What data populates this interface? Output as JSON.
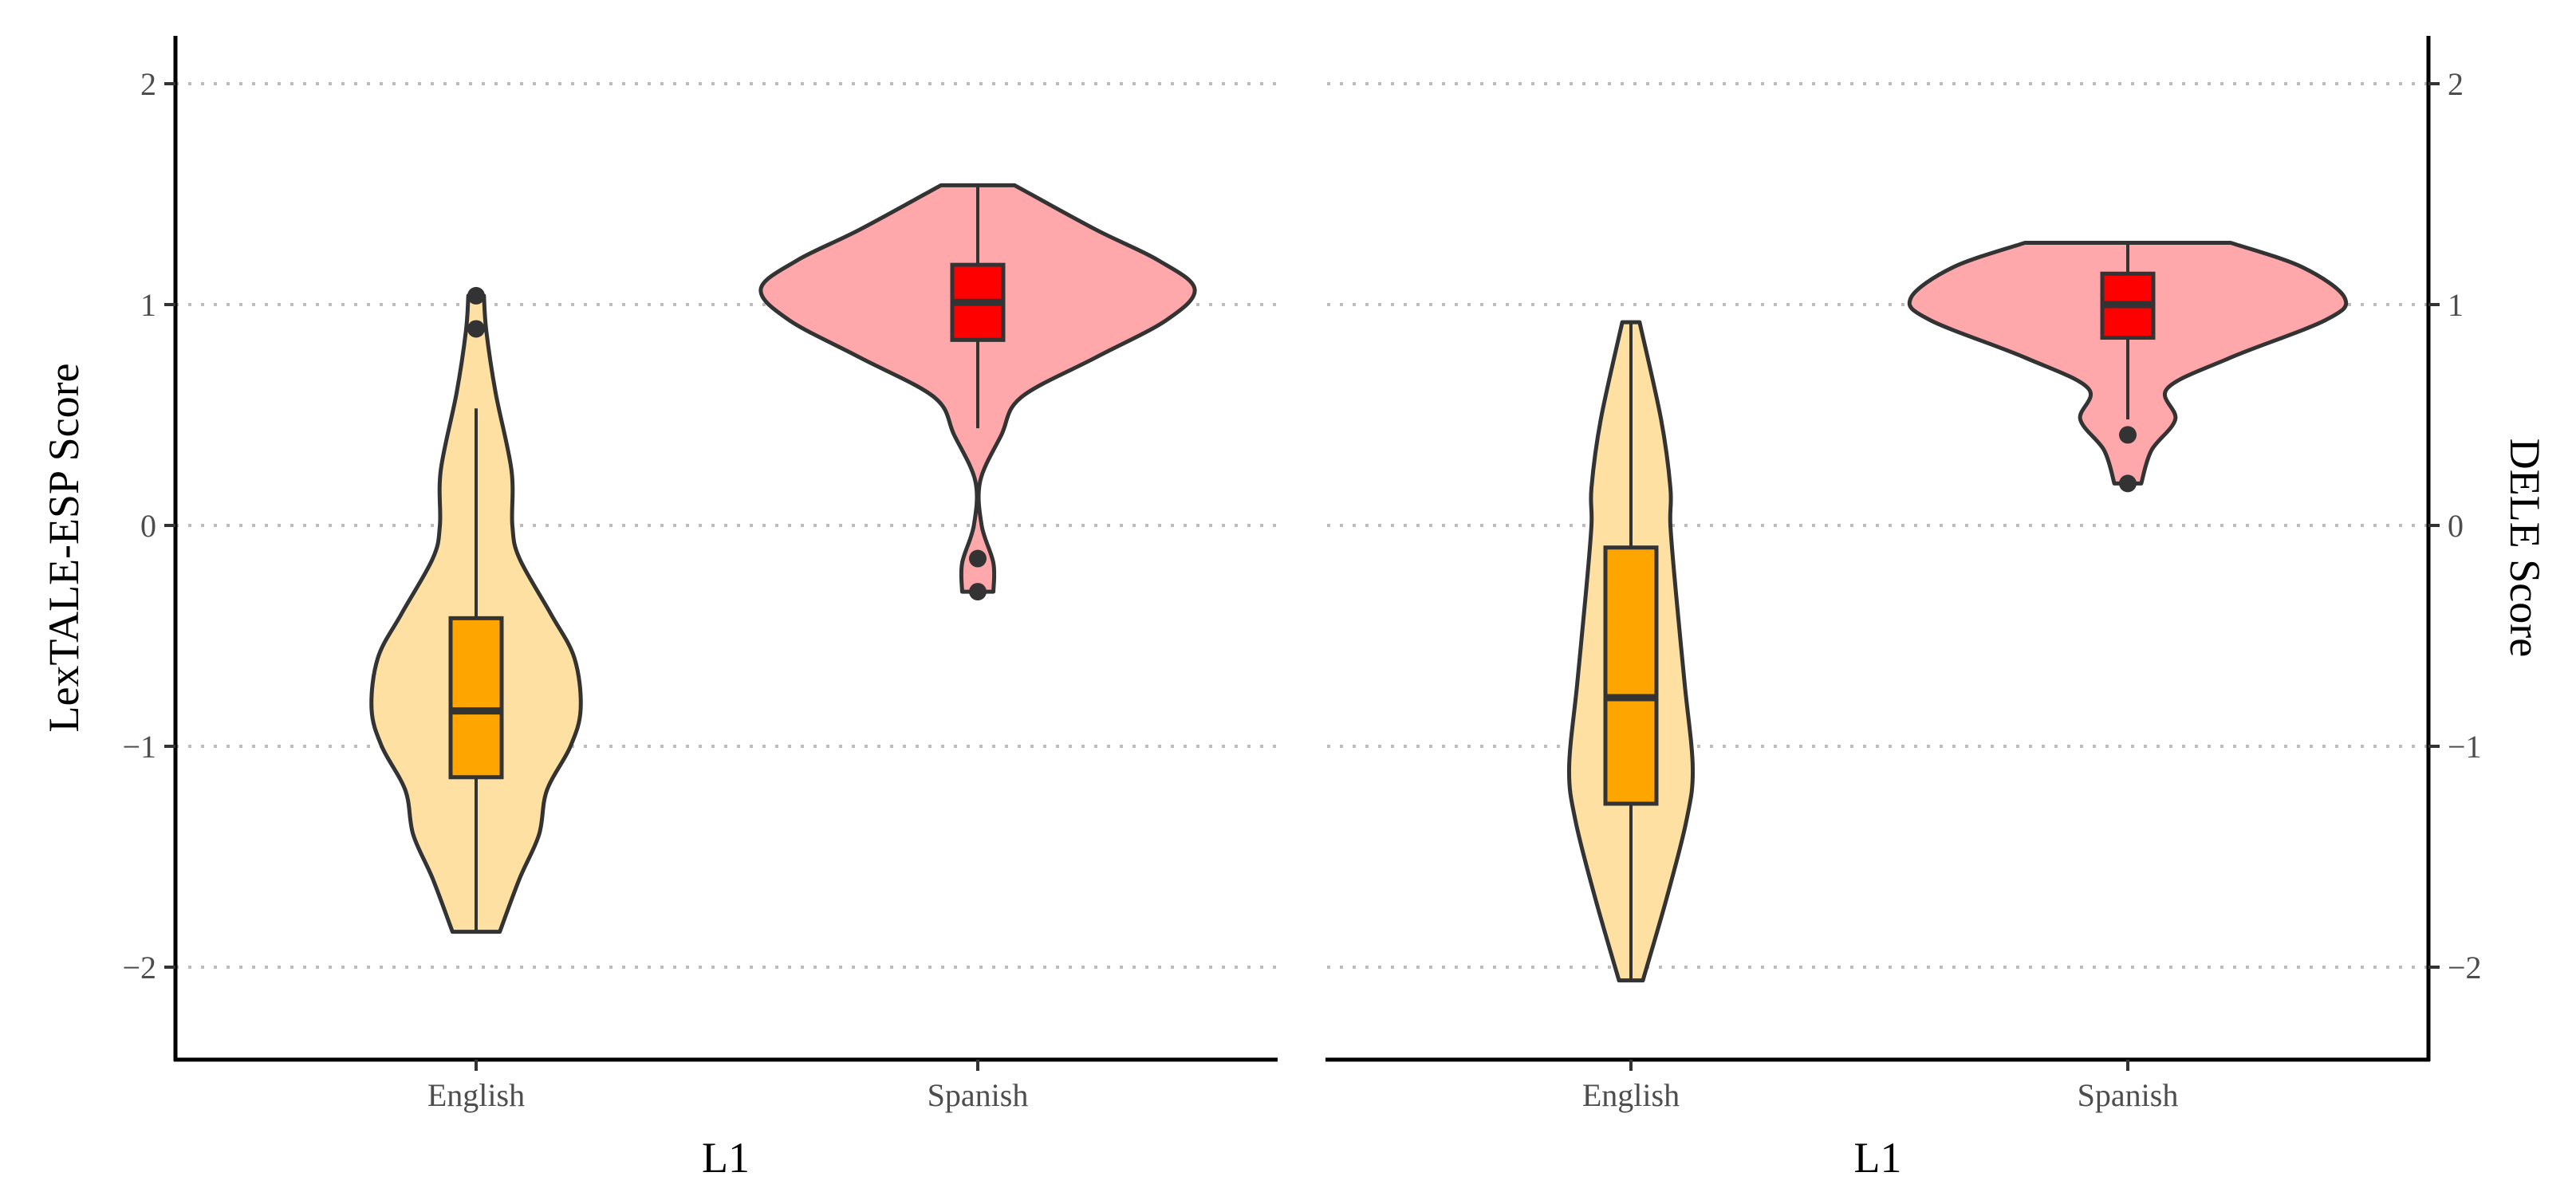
{
  "chart_data": [
    {
      "type": "violin",
      "xlabel": "L1",
      "ylabel": "LexTALE-ESP Score",
      "ylabel_side": "left",
      "categories": [
        "English",
        "Spanish"
      ],
      "yticks": [
        -2,
        -1,
        0,
        1,
        2
      ],
      "ytick_labels": [
        "−2",
        "−1",
        "0",
        "1",
        "2"
      ],
      "ylim": [
        -2.4,
        2.2
      ],
      "grid": "horizontal dotted",
      "groups": [
        {
          "name": "English",
          "violin_color": "#FFE0A3",
          "box_color": "#FFA500",
          "box": {
            "whisker_low": -1.84,
            "q1": -1.14,
            "median": -0.84,
            "q3": -0.42,
            "whisker_high": 0.53
          },
          "outliers": [
            0.89,
            1.04
          ],
          "density": [
            [
              1.04,
              0.036
            ],
            [
              0.88,
              0.047
            ],
            [
              0.6,
              0.09
            ],
            [
              0.25,
              0.163
            ],
            [
              0.0,
              0.167
            ],
            [
              -0.15,
              0.2
            ],
            [
              -0.4,
              0.344
            ],
            [
              -0.6,
              0.453
            ],
            [
              -0.83,
              0.482
            ],
            [
              -1.0,
              0.435
            ],
            [
              -1.2,
              0.326
            ],
            [
              -1.4,
              0.29
            ],
            [
              -1.6,
              0.2
            ],
            [
              -1.84,
              0.109
            ]
          ]
        },
        {
          "name": "Spanish",
          "violin_color": "#FFA8AB",
          "box_color": "#FF0000",
          "box": {
            "whisker_low": 0.44,
            "q1": 0.84,
            "median": 1.01,
            "q3": 1.18,
            "whisker_high": 1.54
          },
          "outliers": [
            -0.15,
            -0.3
          ],
          "density": [
            [
              1.54,
              0.17
            ],
            [
              1.34,
              0.543
            ],
            [
              1.2,
              0.833
            ],
            [
              1.07,
              1.0
            ],
            [
              0.93,
              0.87
            ],
            [
              0.76,
              0.543
            ],
            [
              0.58,
              0.2
            ],
            [
              0.41,
              0.109
            ],
            [
              0.2,
              0.011
            ],
            [
              0.0,
              0.018
            ],
            [
              -0.17,
              0.072
            ],
            [
              -0.3,
              0.072
            ]
          ]
        }
      ]
    },
    {
      "type": "violin",
      "xlabel": "L1",
      "ylabel": "DELE Score",
      "ylabel_side": "right",
      "categories": [
        "English",
        "Spanish"
      ],
      "yticks": [
        -2,
        -1,
        0,
        1,
        2
      ],
      "ytick_labels": [
        "−2",
        "−1",
        "0",
        "1",
        "2"
      ],
      "ylim": [
        -2.4,
        2.2
      ],
      "grid": "horizontal dotted",
      "groups": [
        {
          "name": "English",
          "violin_color": "#FFE0A3",
          "box_color": "#FFA500",
          "box": {
            "whisker_low": -2.06,
            "q1": -1.26,
            "median": -0.78,
            "q3": -0.1,
            "whisker_high": 0.92
          },
          "outliers": [],
          "density": [
            [
              0.92,
              0.04
            ],
            [
              0.48,
              0.139
            ],
            [
              0.17,
              0.182
            ],
            [
              0.0,
              0.182
            ],
            [
              -0.31,
              0.208
            ],
            [
              -0.72,
              0.248
            ],
            [
              -1.1,
              0.285
            ],
            [
              -1.34,
              0.255
            ],
            [
              -1.69,
              0.164
            ],
            [
              -2.06,
              0.055
            ]
          ]
        },
        {
          "name": "Spanish",
          "violin_color": "#FFA8AB",
          "box_color": "#FF0000",
          "box": {
            "whisker_low": 0.48,
            "q1": 0.85,
            "median": 1.0,
            "q3": 1.14,
            "whisker_high": 1.28
          },
          "outliers": [
            0.41,
            0.19
          ],
          "density": [
            [
              1.28,
              0.474
            ],
            [
              1.17,
              0.803
            ],
            [
              1.03,
              1.0
            ],
            [
              0.93,
              0.912
            ],
            [
              0.76,
              0.474
            ],
            [
              0.62,
              0.182
            ],
            [
              0.48,
              0.219
            ],
            [
              0.34,
              0.109
            ],
            [
              0.19,
              0.062
            ]
          ]
        }
      ]
    }
  ]
}
